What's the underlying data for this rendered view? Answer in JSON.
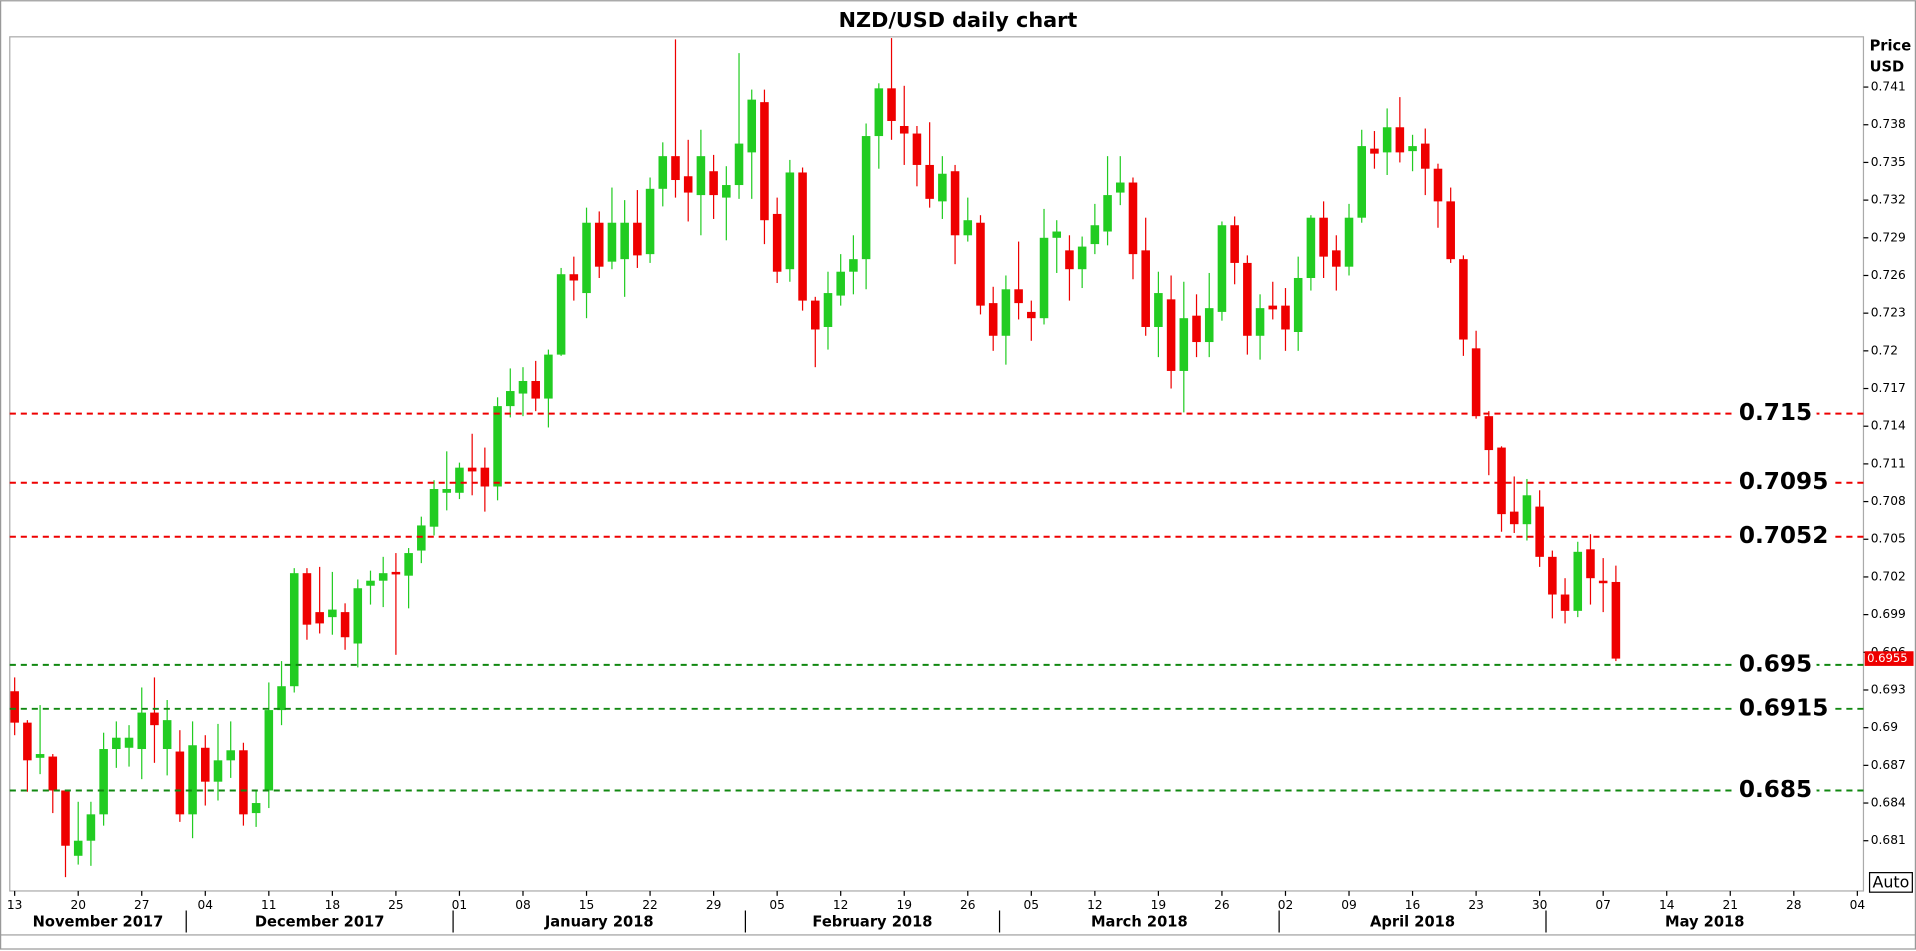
{
  "chart_data": {
    "type": "candlestick",
    "title": "NZD/USD daily chart",
    "y_axis_label_lines": [
      "Price",
      "USD"
    ],
    "auto_button": "Auto",
    "up_color": "#22cc22",
    "down_color": "#ee0000",
    "ylim": [
      0.677,
      0.745
    ],
    "yticks": [
      0.681,
      0.684,
      0.687,
      0.69,
      0.693,
      0.696,
      0.699,
      0.702,
      0.705,
      0.708,
      0.711,
      0.714,
      0.717,
      0.72,
      0.723,
      0.726,
      0.729,
      0.732,
      0.735,
      0.738,
      0.741
    ],
    "last_price": 0.6955,
    "levels": [
      {
        "value": 0.715,
        "color": "#ee0000"
      },
      {
        "value": 0.7095,
        "color": "#ee0000"
      },
      {
        "value": 0.7052,
        "color": "#ee0000"
      },
      {
        "value": 0.695,
        "color": "#118811"
      },
      {
        "value": 0.6915,
        "color": "#118811"
      },
      {
        "value": 0.685,
        "color": "#118811"
      }
    ],
    "xticks": [
      {
        "value": "2017-11-13",
        "label": "13"
      },
      {
        "value": "2017-11-20",
        "label": "20"
      },
      {
        "value": "2017-11-27",
        "label": "27"
      },
      {
        "value": "2017-12-04",
        "label": "04"
      },
      {
        "value": "2017-12-11",
        "label": "11"
      },
      {
        "value": "2017-12-18",
        "label": "18"
      },
      {
        "value": "2017-12-25",
        "label": "25"
      },
      {
        "value": "2018-01-01",
        "label": "01"
      },
      {
        "value": "2018-01-08",
        "label": "08"
      },
      {
        "value": "2018-01-15",
        "label": "15"
      },
      {
        "value": "2018-01-22",
        "label": "22"
      },
      {
        "value": "2018-01-29",
        "label": "29"
      },
      {
        "value": "2018-02-05",
        "label": "05"
      },
      {
        "value": "2018-02-12",
        "label": "12"
      },
      {
        "value": "2018-02-19",
        "label": "19"
      },
      {
        "value": "2018-02-26",
        "label": "26"
      },
      {
        "value": "2018-03-05",
        "label": "05"
      },
      {
        "value": "2018-03-12",
        "label": "12"
      },
      {
        "value": "2018-03-19",
        "label": "19"
      },
      {
        "value": "2018-03-26",
        "label": "26"
      },
      {
        "value": "2018-04-02",
        "label": "02"
      },
      {
        "value": "2018-04-09",
        "label": "09"
      },
      {
        "value": "2018-04-16",
        "label": "16"
      },
      {
        "value": "2018-04-23",
        "label": "23"
      },
      {
        "value": "2018-04-30",
        "label": "30"
      },
      {
        "value": "2018-05-07",
        "label": "07"
      },
      {
        "value": "2018-05-14",
        "label": "14"
      },
      {
        "value": "2018-05-21",
        "label": "21"
      },
      {
        "value": "2018-05-28",
        "label": "28"
      },
      {
        "value": "2018-06-04",
        "label": "04"
      }
    ],
    "months": [
      {
        "value": "2017-11-01",
        "label": "November 2017"
      },
      {
        "value": "2017-12-01",
        "label": "December 2017"
      },
      {
        "value": "2018-01-01",
        "label": "January 2018"
      },
      {
        "value": "2018-02-01",
        "label": "February 2018"
      },
      {
        "value": "2018-03-01",
        "label": "March 2018"
      },
      {
        "value": "2018-04-01",
        "label": "April 2018"
      },
      {
        "value": "2018-05-01",
        "label": "May 2018"
      }
    ],
    "x": [
      "2017-11-13",
      "2017-11-14",
      "2017-11-15",
      "2017-11-16",
      "2017-11-17",
      "2017-11-20",
      "2017-11-21",
      "2017-11-22",
      "2017-11-23",
      "2017-11-24",
      "2017-11-27",
      "2017-11-28",
      "2017-11-29",
      "2017-11-30",
      "2017-12-01",
      "2017-12-04",
      "2017-12-05",
      "2017-12-06",
      "2017-12-07",
      "2017-12-08",
      "2017-12-11",
      "2017-12-12",
      "2017-12-13",
      "2017-12-14",
      "2017-12-15",
      "2017-12-18",
      "2017-12-19",
      "2017-12-20",
      "2017-12-21",
      "2017-12-22",
      "2017-12-25",
      "2017-12-26",
      "2017-12-27",
      "2017-12-28",
      "2017-12-29",
      "2018-01-01",
      "2018-01-02",
      "2018-01-03",
      "2018-01-04",
      "2018-01-05",
      "2018-01-08",
      "2018-01-09",
      "2018-01-10",
      "2018-01-11",
      "2018-01-12",
      "2018-01-15",
      "2018-01-16",
      "2018-01-17",
      "2018-01-18",
      "2018-01-19",
      "2018-01-22",
      "2018-01-23",
      "2018-01-24",
      "2018-01-25",
      "2018-01-26",
      "2018-01-29",
      "2018-01-30",
      "2018-01-31",
      "2018-02-01",
      "2018-02-02",
      "2018-02-05",
      "2018-02-06",
      "2018-02-07",
      "2018-02-08",
      "2018-02-09",
      "2018-02-12",
      "2018-02-13",
      "2018-02-14",
      "2018-02-15",
      "2018-02-16",
      "2018-02-19",
      "2018-02-20",
      "2018-02-21",
      "2018-02-22",
      "2018-02-23",
      "2018-02-26",
      "2018-02-27",
      "2018-02-28",
      "2018-03-01",
      "2018-03-02",
      "2018-03-05",
      "2018-03-06",
      "2018-03-07",
      "2018-03-08",
      "2018-03-09",
      "2018-03-12",
      "2018-03-13",
      "2018-03-14",
      "2018-03-15",
      "2018-03-16",
      "2018-03-19",
      "2018-03-20",
      "2018-03-21",
      "2018-03-22",
      "2018-03-23",
      "2018-03-26",
      "2018-03-27",
      "2018-03-28",
      "2018-03-29",
      "2018-03-30",
      "2018-04-02",
      "2018-04-03",
      "2018-04-04",
      "2018-04-05",
      "2018-04-06",
      "2018-04-09",
      "2018-04-10",
      "2018-04-11",
      "2018-04-12",
      "2018-04-13",
      "2018-04-16",
      "2018-04-17",
      "2018-04-18",
      "2018-04-19",
      "2018-04-20",
      "2018-04-23",
      "2018-04-24",
      "2018-04-25",
      "2018-04-26",
      "2018-04-27",
      "2018-04-30",
      "2018-05-01",
      "2018-05-02",
      "2018-05-03",
      "2018-05-04",
      "2018-05-07",
      "2018-05-08"
    ],
    "open": [
      0.6929,
      0.6904,
      0.6876,
      0.6877,
      0.685,
      0.6798,
      0.681,
      0.6831,
      0.6883,
      0.6884,
      0.6883,
      0.6912,
      0.6883,
      0.6881,
      0.6831,
      0.6884,
      0.6857,
      0.6874,
      0.6882,
      0.6832,
      0.685,
      0.6914,
      0.6933,
      0.7023,
      0.6992,
      0.6988,
      0.6992,
      0.6967,
      0.7013,
      0.7017,
      0.7024,
      0.7021,
      0.7041,
      0.706,
      0.7087,
      0.7087,
      0.7107,
      0.7107,
      0.7092,
      0.7156,
      0.7166,
      0.7176,
      0.7162,
      0.7197,
      0.7261,
      0.7246,
      0.7302,
      0.7271,
      0.7273,
      0.7302,
      0.7277,
      0.7329,
      0.7355,
      0.7339,
      0.7324,
      0.7343,
      0.7322,
      0.7332,
      0.7358,
      0.7398,
      0.7309,
      0.7265,
      0.7342,
      0.724,
      0.7219,
      0.7244,
      0.7263,
      0.7273,
      0.7371,
      0.7409,
      0.7379,
      0.7373,
      0.7348,
      0.7319,
      0.7343,
      0.7292,
      0.7302,
      0.7238,
      0.7212,
      0.7249,
      0.7231,
      0.7226,
      0.729,
      0.728,
      0.7265,
      0.7285,
      0.7295,
      0.7326,
      0.7334,
      0.728,
      0.7219,
      0.7241,
      0.7184,
      0.7228,
      0.7207,
      0.7231,
      0.73,
      0.727,
      0.7212,
      0.7236,
      0.7236,
      0.7215,
      0.7258,
      0.7306,
      0.728,
      0.7267,
      0.7306,
      0.7361,
      0.7358,
      0.7378,
      0.7359,
      0.7365,
      0.7345,
      0.7319,
      0.7273,
      0.7202,
      0.7148,
      0.7123,
      0.7072,
      0.7062,
      0.7076,
      0.7036,
      0.7006,
      0.6993,
      0.7042,
      0.7017,
      0.7016
    ],
    "high": [
      0.694,
      0.6906,
      0.6918,
      0.6879,
      0.685,
      0.6841,
      0.6841,
      0.6896,
      0.6905,
      0.6902,
      0.6932,
      0.694,
      0.6922,
      0.6898,
      0.6905,
      0.6894,
      0.6903,
      0.6905,
      0.6888,
      0.685,
      0.6936,
      0.6953,
      0.7027,
      0.7027,
      0.7028,
      0.7024,
      0.6999,
      0.7018,
      0.7025,
      0.7036,
      0.7039,
      0.7043,
      0.7068,
      0.7097,
      0.712,
      0.7111,
      0.7134,
      0.7123,
      0.7163,
      0.7186,
      0.7187,
      0.7192,
      0.7201,
      0.7266,
      0.7275,
      0.7314,
      0.7311,
      0.733,
      0.732,
      0.7328,
      0.7338,
      0.7366,
      0.7448,
      0.7368,
      0.7376,
      0.7356,
      0.7347,
      0.7437,
      0.7408,
      0.7408,
      0.7322,
      0.7352,
      0.7346,
      0.7243,
      0.7263,
      0.7277,
      0.7292,
      0.7381,
      0.7413,
      0.7449,
      0.7411,
      0.7379,
      0.7382,
      0.7355,
      0.7348,
      0.7322,
      0.7308,
      0.7251,
      0.726,
      0.7287,
      0.724,
      0.7313,
      0.7304,
      0.7292,
      0.7291,
      0.7317,
      0.7355,
      0.7355,
      0.7338,
      0.7306,
      0.7263,
      0.726,
      0.7255,
      0.7245,
      0.7262,
      0.7303,
      0.7307,
      0.7276,
      0.7245,
      0.7255,
      0.725,
      0.7275,
      0.7308,
      0.7319,
      0.7292,
      0.7317,
      0.7376,
      0.7375,
      0.7393,
      0.7402,
      0.7372,
      0.7377,
      0.7349,
      0.733,
      0.7276,
      0.7216,
      0.7152,
      0.7124,
      0.71,
      0.7098,
      0.7089,
      0.7041,
      0.7019,
      0.7048,
      0.7054,
      0.7035,
      0.7029
    ],
    "low": [
      0.6894,
      0.6849,
      0.6863,
      0.6832,
      0.6781,
      0.6791,
      0.679,
      0.6822,
      0.6868,
      0.6869,
      0.6859,
      0.6872,
      0.6862,
      0.6825,
      0.6812,
      0.6838,
      0.6842,
      0.686,
      0.6822,
      0.6821,
      0.6836,
      0.6902,
      0.6928,
      0.697,
      0.6975,
      0.6974,
      0.6962,
      0.6948,
      0.6998,
      0.6996,
      0.6958,
      0.6995,
      0.7031,
      0.7053,
      0.7073,
      0.7082,
      0.7085,
      0.7072,
      0.7081,
      0.7147,
      0.7148,
      0.7152,
      0.7139,
      0.7196,
      0.724,
      0.7226,
      0.7258,
      0.7265,
      0.7243,
      0.7266,
      0.727,
      0.7315,
      0.7322,
      0.7303,
      0.7292,
      0.7305,
      0.7288,
      0.7321,
      0.7321,
      0.7285,
      0.7254,
      0.7255,
      0.7232,
      0.7187,
      0.7201,
      0.7236,
      0.7245,
      0.7249,
      0.7345,
      0.7368,
      0.7348,
      0.7331,
      0.7314,
      0.7305,
      0.7269,
      0.7287,
      0.7229,
      0.72,
      0.7189,
      0.7225,
      0.7208,
      0.7221,
      0.7262,
      0.724,
      0.725,
      0.7277,
      0.7284,
      0.7316,
      0.7257,
      0.7212,
      0.7195,
      0.717,
      0.7151,
      0.7195,
      0.7195,
      0.7224,
      0.7253,
      0.7197,
      0.7193,
      0.7225,
      0.72,
      0.72,
      0.7248,
      0.7258,
      0.7248,
      0.726,
      0.7302,
      0.7345,
      0.734,
      0.735,
      0.7343,
      0.7324,
      0.7298,
      0.727,
      0.7196,
      0.7146,
      0.7101,
      0.7056,
      0.7055,
      0.7049,
      0.7028,
      0.6987,
      0.6983,
      0.6988,
      0.6998,
      0.6992,
      0.6953
    ],
    "close": [
      0.6904,
      0.6874,
      0.6879,
      0.685,
      0.6806,
      0.681,
      0.6831,
      0.6883,
      0.6892,
      0.6892,
      0.6912,
      0.6902,
      0.6906,
      0.6831,
      0.6886,
      0.6857,
      0.6874,
      0.6882,
      0.6831,
      0.684,
      0.6914,
      0.6933,
      0.7023,
      0.6982,
      0.6983,
      0.6994,
      0.6972,
      0.7011,
      0.7017,
      0.7023,
      0.7022,
      0.7039,
      0.7061,
      0.709,
      0.709,
      0.7107,
      0.7104,
      0.7092,
      0.7156,
      0.7168,
      0.7176,
      0.7162,
      0.7197,
      0.7261,
      0.7256,
      0.7302,
      0.7267,
      0.7302,
      0.7302,
      0.7276,
      0.7329,
      0.7355,
      0.7336,
      0.7326,
      0.7355,
      0.7324,
      0.7332,
      0.7365,
      0.74,
      0.7304,
      0.7263,
      0.7342,
      0.724,
      0.7217,
      0.7246,
      0.7263,
      0.7273,
      0.7371,
      0.7409,
      0.7383,
      0.7373,
      0.7348,
      0.7321,
      0.7341,
      0.7292,
      0.7304,
      0.7236,
      0.7212,
      0.7249,
      0.7238,
      0.7226,
      0.729,
      0.7295,
      0.7265,
      0.7283,
      0.73,
      0.7324,
      0.7334,
      0.7277,
      0.7219,
      0.7246,
      0.7184,
      0.7226,
      0.7207,
      0.7234,
      0.73,
      0.727,
      0.7212,
      0.7234,
      0.7233,
      0.7217,
      0.7258,
      0.7306,
      0.7275,
      0.7267,
      0.7306,
      0.7363,
      0.7357,
      0.7378,
      0.7358,
      0.7363,
      0.7345,
      0.7319,
      0.7273,
      0.7209,
      0.7148,
      0.7121,
      0.707,
      0.7062,
      0.7085,
      0.7036,
      0.7006,
      0.6993,
      0.704,
      0.7019,
      0.7015,
      0.6955
    ]
  }
}
